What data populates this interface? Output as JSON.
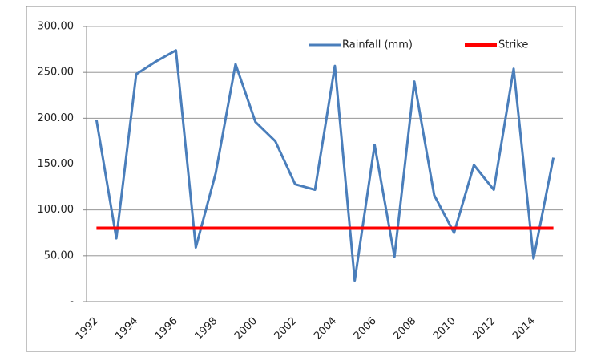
{
  "chart_data": {
    "type": "line",
    "categories": [
      "1992",
      null,
      "1994",
      null,
      "1996",
      null,
      "1998",
      null,
      "2000",
      null,
      "2002",
      null,
      "2004",
      null,
      "2006",
      null,
      "2008",
      null,
      "2010",
      null,
      "2012",
      null,
      "2014",
      null
    ],
    "series": [
      {
        "name": "Rainfall (mm)",
        "color": "#4a7ebb",
        "values": [
          198,
          69,
          248,
          262,
          274,
          59,
          140,
          259,
          196,
          175,
          128,
          122,
          257,
          23,
          171,
          49,
          240,
          116,
          75,
          149,
          122,
          254,
          47,
          157
        ]
      },
      {
        "name": "Strike",
        "color": "#ff0000",
        "values": [
          80,
          80,
          80,
          80,
          80,
          80,
          80,
          80,
          80,
          80,
          80,
          80,
          80,
          80,
          80,
          80,
          80,
          80,
          80,
          80,
          80,
          80,
          80,
          80
        ]
      }
    ],
    "ylim": [
      0,
      300
    ],
    "yticks": [
      {
        "value": 0,
        "label": "-"
      },
      {
        "value": 50,
        "label": "50.00"
      },
      {
        "value": 100,
        "label": "100.00"
      },
      {
        "value": 150,
        "label": "150.00"
      },
      {
        "value": 200,
        "label": "200.00"
      },
      {
        "value": 250,
        "label": "250.00"
      },
      {
        "value": 300,
        "label": "300.00"
      }
    ],
    "grid": true,
    "legend": "top-right"
  }
}
